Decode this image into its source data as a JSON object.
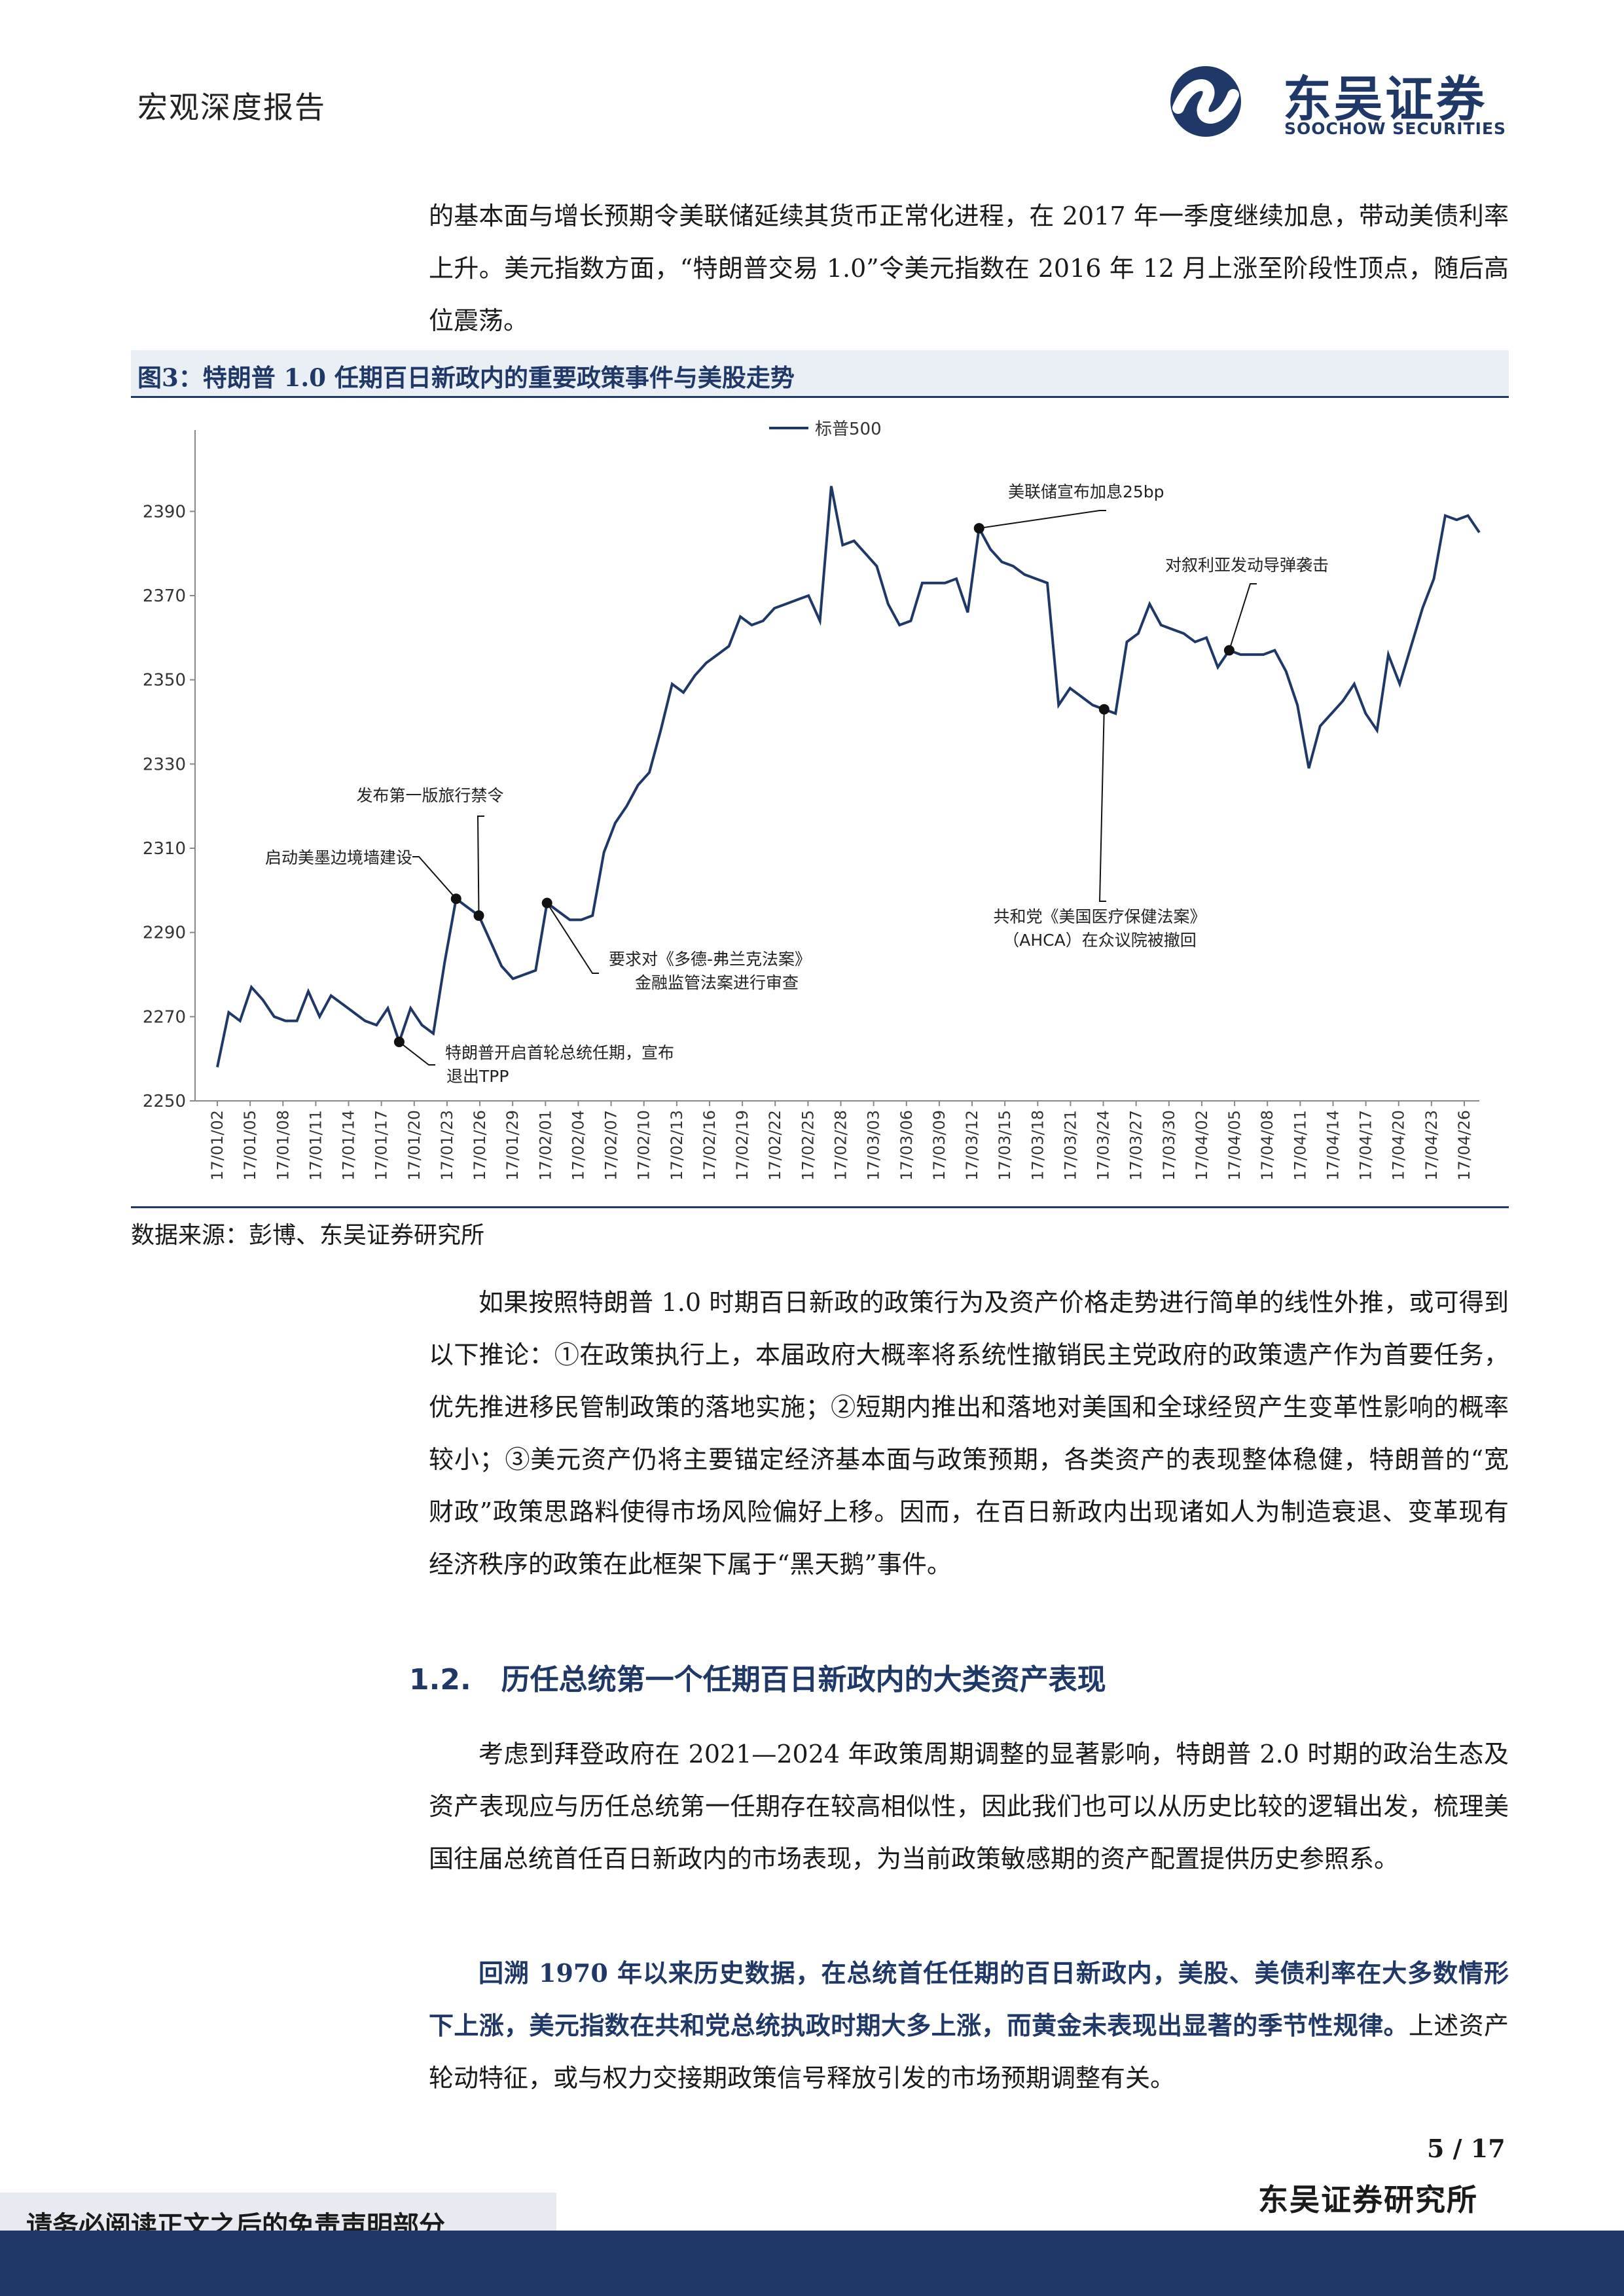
{
  "header": {
    "report_type": "宏观深度报告",
    "logo": {
      "name_cn": "东吴证券",
      "name_en": "SOOCHOW SECURITIES",
      "brand_color": "#1f3868"
    }
  },
  "intro_paragraph": "的基本面与增长预期令美联储延续其货币正常化进程，在 2017 年一季度继续加息，带动美债利率上升。美元指数方面，“特朗普交易 1.0”令美元指数在 2016 年 12 月上涨至阶段性顶点，随后高位震荡。",
  "figure": {
    "title": "图3：特朗普 1.0 任期百日新政内的重要政策事件与美股走势",
    "source": "数据来源：彭博、东吴证券研究所"
  },
  "chart_data": {
    "type": "line",
    "legend": [
      "标普500"
    ],
    "legend_position": "top-center",
    "ylim": [
      2250,
      2400
    ],
    "yticks": [
      2250,
      2270,
      2290,
      2310,
      2330,
      2350,
      2370,
      2390
    ],
    "xtick_labels": [
      "17/01/02",
      "17/01/05",
      "17/01/08",
      "17/01/11",
      "17/01/14",
      "17/01/17",
      "17/01/20",
      "17/01/23",
      "17/01/26",
      "17/01/29",
      "17/02/01",
      "17/02/04",
      "17/02/07",
      "17/02/10",
      "17/02/13",
      "17/02/16",
      "17/02/19",
      "17/02/22",
      "17/02/25",
      "17/02/28",
      "17/03/03",
      "17/03/06",
      "17/03/09",
      "17/03/12",
      "17/03/15",
      "17/03/18",
      "17/03/21",
      "17/03/24",
      "17/03/27",
      "17/03/30",
      "17/04/02",
      "17/04/05",
      "17/04/08",
      "17/04/11",
      "17/04/14",
      "17/04/17",
      "17/04/20",
      "17/04/23",
      "17/04/26"
    ],
    "grid": false,
    "line_color": "#1f3868",
    "series": [
      {
        "name": "标普500",
        "values": [
          2258,
          2271,
          2269,
          2277,
          2274,
          2270,
          2269,
          2269,
          2276,
          2270,
          2275,
          2273,
          2271,
          2269,
          2268,
          2272,
          2264,
          2272,
          2268,
          2266,
          2283,
          2298,
          2296,
          2294,
          2288,
          2282,
          2279,
          2280,
          2281,
          2297,
          2295,
          2293,
          2293,
          2294,
          2309,
          2316,
          2320,
          2325,
          2328,
          2338,
          2349,
          2347,
          2351,
          2354,
          2356,
          2358,
          2365,
          2363,
          2364,
          2367,
          2368,
          2369,
          2370,
          2364,
          2396,
          2382,
          2383,
          2380,
          2377,
          2368,
          2363,
          2364,
          2373,
          2373,
          2373,
          2374,
          2366,
          2386,
          2381,
          2378,
          2377,
          2375,
          2374,
          2373,
          2344,
          2348,
          2346,
          2344,
          2343,
          2342,
          2359,
          2361,
          2368,
          2363,
          2362,
          2361,
          2359,
          2360,
          2353,
          2357,
          2356,
          2356,
          2356,
          2357,
          2352,
          2344,
          2329,
          2339,
          2342,
          2345,
          2349,
          2342,
          2338,
          2356,
          2349,
          2358,
          2367,
          2374,
          2389,
          2388,
          2389,
          2385
        ]
      }
    ],
    "annotations": [
      {
        "text": "特朗普开启首轮总统任期，宣布退出TPP",
        "point_index": 16
      },
      {
        "text": "启动美墨边境墙建设",
        "point_index": 21
      },
      {
        "text": "发布第一版旅行禁令",
        "point_index": 23
      },
      {
        "text": "要求对《多德-弗兰克法案》金融监管法案进行审查",
        "point_index": 29
      },
      {
        "text": "美联储宣布加息25bp",
        "point_index": 67
      },
      {
        "text": "共和党《美国医疗保健法案》（AHCA）在众议院被撤回",
        "point_index": 78
      },
      {
        "text": "对叙利亚发动导弹袭击",
        "point_index": 89
      }
    ]
  },
  "body_paragraph_1": "如果按照特朗普 1.0 时期百日新政的政策行为及资产价格走势进行简单的线性外推，或可得到以下推论：①在政策执行上，本届政府大概率将系统性撤销民主党政府的政策遗产作为首要任务，优先推进移民管制政策的落地实施；②短期内推出和落地对美国和全球经贸产生变革性影响的概率较小；③美元资产仍将主要锚定经济基本面与政策预期，各类资产的表现整体稳健，特朗普的“宽财政”政策思路料使得市场风险偏好上移。因而，在百日新政内出现诸如人为制造衰退、变革现有经济秩序的政策在此框架下属于“黑天鹅”事件。",
  "section": {
    "number": "1.2.",
    "title": "历任总统第一个任期百日新政内的大类资产表现"
  },
  "body_paragraph_2": "考虑到拜登政府在 2021—2024 年政策周期调整的显著影响，特朗普 2.0 时期的政治生态及资产表现应与历任总统第一任期存在较高相似性，因此我们也可以从历史比较的逻辑出发，梳理美国往届总统首任百日新政内的市场表现，为当前政策敏感期的资产配置提供历史参照系。",
  "body_paragraph_3": {
    "highlight": "回溯 1970 年以来历史数据，在总统首任任期的百日新政内，美股、美债利率在大多数情形下上涨，美元指数在共和党总统执政时期大多上涨，而黄金未表现出显著的季节性规律。",
    "rest": "上述资产轮动特征，或与权力交接期政策信号释放引发的市场预期调整有关。"
  },
  "footer": {
    "page_number": "5  /  17",
    "firm_name": "东吴证券研究所",
    "disclaimer": "请务必阅读正文之后的免责声明部分"
  }
}
